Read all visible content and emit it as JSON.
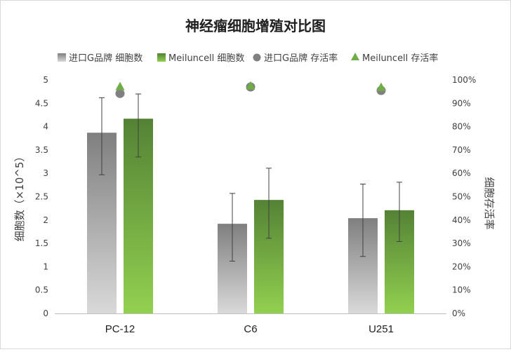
{
  "chart_data": {
    "type": "bar",
    "title": "神经瘤细胞增殖对比图",
    "categories": [
      "PC-12",
      "C6",
      "U251"
    ],
    "ylabel": "细胞数（×10^5）",
    "y2label": "细胞存活率",
    "ylim": [
      0,
      5
    ],
    "yticks": [
      "0",
      "0.5",
      "1",
      "1.5",
      "2",
      "2.5",
      "3",
      "3.5",
      "4",
      "4.5",
      "5"
    ],
    "y2lim": [
      0,
      1
    ],
    "y2ticks": [
      "0%",
      "10%",
      "20%",
      "30%",
      "40%",
      "50%",
      "60%",
      "70%",
      "80%",
      "90%",
      "100%"
    ],
    "legend_position": "top",
    "grid": false,
    "series": [
      {
        "name": "进口G品牌 细胞数",
        "kind": "bar",
        "axis": "left",
        "values": [
          3.87,
          1.92,
          2.04
        ],
        "error_low": [
          2.97,
          1.12,
          1.22
        ],
        "error_high": [
          4.62,
          2.57,
          2.77
        ],
        "color_top": "#7f7f7f",
        "color_bottom": "#d9d9d9"
      },
      {
        "name": "Meiluncell 细胞数",
        "kind": "bar",
        "axis": "left",
        "values": [
          4.17,
          2.43,
          2.21
        ],
        "error_low": [
          3.35,
          1.61,
          1.54
        ],
        "error_high": [
          4.7,
          3.11,
          2.81
        ],
        "color_top": "#548235",
        "color_bottom": "#92d050"
      },
      {
        "name": "进口G品牌 存活率",
        "kind": "marker",
        "marker": "circle",
        "axis": "right",
        "values": [
          0.942,
          0.97,
          0.955
        ],
        "color": "#808080"
      },
      {
        "name": "Meiluncell 存活率",
        "kind": "marker",
        "marker": "triangle",
        "axis": "right",
        "values": [
          0.965,
          0.968,
          0.962
        ],
        "color": "#70ad47"
      }
    ]
  }
}
